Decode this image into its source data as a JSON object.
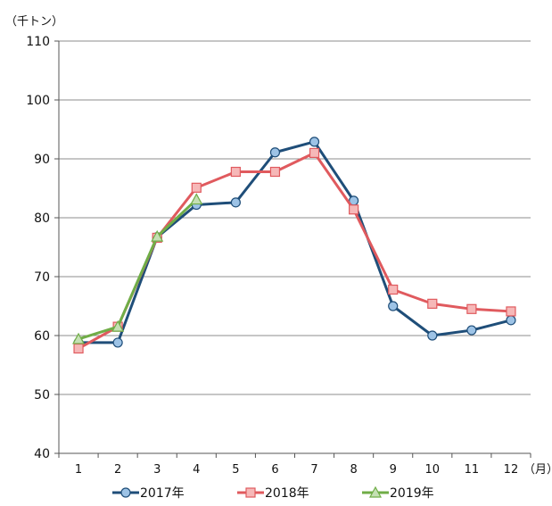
{
  "chart_data": {
    "type": "line",
    "title": "",
    "ylabel": "（千トン）",
    "xunit": "（月）",
    "categories": [
      "1",
      "2",
      "3",
      "4",
      "5",
      "6",
      "7",
      "8",
      "9",
      "10",
      "11",
      "12"
    ],
    "yticks": [
      40,
      50,
      60,
      70,
      80,
      90,
      100,
      110
    ],
    "ylim": [
      40,
      110
    ],
    "grid": true,
    "legend_position": "bottom",
    "series": [
      {
        "name": "2017年",
        "marker": "circle",
        "color": "#1f4e79",
        "marker_fill": "#9dc3e6",
        "values": [
          58.8,
          58.8,
          76.7,
          82.2,
          82.6,
          91.1,
          92.9,
          82.9,
          65.0,
          60.0,
          60.9,
          62.6
        ]
      },
      {
        "name": "2018年",
        "marker": "square",
        "color": "#e05a5e",
        "marker_fill": "#f6b8b8",
        "values": [
          57.8,
          61.5,
          76.6,
          85.1,
          87.8,
          87.8,
          91.0,
          81.4,
          67.8,
          65.4,
          64.5,
          64.1
        ]
      },
      {
        "name": "2019年",
        "marker": "triangle",
        "color": "#70ad47",
        "marker_fill": "#c5e0b4",
        "values": [
          59.4,
          61.5,
          76.8,
          83.1,
          null,
          null,
          null,
          null,
          null,
          null,
          null,
          null
        ]
      }
    ]
  }
}
